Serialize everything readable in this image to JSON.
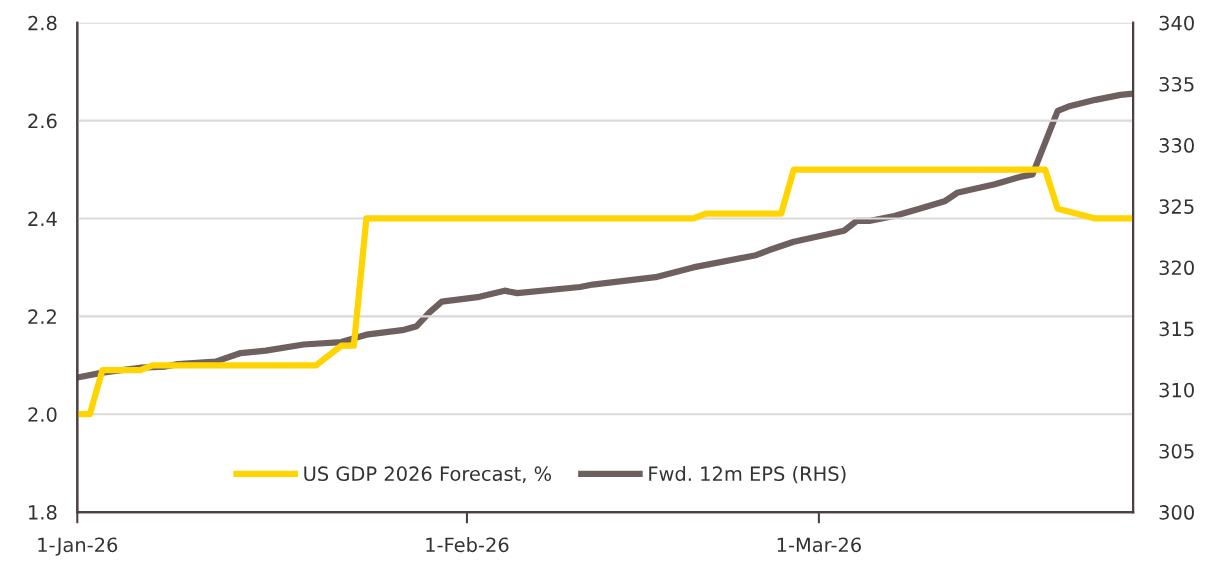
{
  "chart_data": {
    "type": "line",
    "series": [
      {
        "name": "US GDP 2026 Forecast, %",
        "color": "#ffd400",
        "x": [
          "2026-01-01",
          "2026-01-02",
          "2026-01-03",
          "2026-01-06",
          "2026-01-07",
          "2026-01-20",
          "2026-01-22",
          "2026-01-23",
          "2026-01-24",
          "2026-02-19",
          "2026-02-20",
          "2026-02-26",
          "2026-02-27",
          "2026-03-19",
          "2026-03-20",
          "2026-03-23",
          "2026-03-26"
        ],
        "values": [
          2.0,
          2.0,
          2.09,
          2.09,
          2.1,
          2.1,
          2.14,
          2.14,
          2.4,
          2.4,
          2.41,
          2.41,
          2.5,
          2.5,
          2.42,
          2.4,
          2.4
        ]
      },
      {
        "name": "Fwd. 12m EPS (RHS)",
        "color": "#6e605e",
        "axis": "y2",
        "x": [
          "2026-01-01",
          "2026-01-03",
          "2026-01-06",
          "2026-01-08",
          "2026-01-09",
          "2026-01-12",
          "2026-01-14",
          "2026-01-16",
          "2026-01-19",
          "2026-01-22",
          "2026-01-24",
          "2026-01-27",
          "2026-01-28",
          "2026-01-29",
          "2026-01-30",
          "2026-02-02",
          "2026-02-04",
          "2026-02-05",
          "2026-02-10",
          "2026-02-11",
          "2026-02-16",
          "2026-02-19",
          "2026-02-24",
          "2026-02-25",
          "2026-02-27",
          "2026-03-03",
          "2026-03-04",
          "2026-03-05",
          "2026-03-07",
          "2026-03-09",
          "2026-03-11",
          "2026-03-12",
          "2026-03-15",
          "2026-03-17",
          "2026-03-18",
          "2026-03-20",
          "2026-03-21",
          "2026-03-23",
          "2026-03-25",
          "2026-03-26"
        ],
        "values": [
          311.0,
          311.4,
          311.8,
          311.9,
          312.1,
          312.3,
          313.0,
          313.2,
          313.7,
          313.9,
          314.5,
          314.9,
          315.2,
          316.3,
          317.2,
          317.6,
          318.1,
          317.9,
          318.4,
          318.6,
          319.2,
          320.0,
          321.0,
          321.4,
          322.1,
          323.0,
          323.8,
          323.8,
          324.2,
          324.8,
          325.4,
          326.1,
          326.8,
          327.4,
          327.6,
          332.8,
          333.2,
          333.7,
          334.1,
          334.2
        ]
      }
    ],
    "xlim": [
      "2026-01-01",
      "2026-03-26"
    ],
    "xticks": [
      {
        "value": "2026-01-01",
        "label": "1-Jan-26"
      },
      {
        "value": "2026-02-01",
        "label": "1-Feb-26"
      },
      {
        "value": "2026-03-01",
        "label": "1-Mar-26"
      }
    ],
    "ylim": [
      1.8,
      2.8
    ],
    "yticks": [
      {
        "value": 1.8,
        "label": "1.8"
      },
      {
        "value": 2.0,
        "label": "2.0"
      },
      {
        "value": 2.2,
        "label": "2.2"
      },
      {
        "value": 2.4,
        "label": "2.4"
      },
      {
        "value": 2.6,
        "label": "2.6"
      },
      {
        "value": 2.8,
        "label": "2.8"
      }
    ],
    "y2lim": [
      300,
      340
    ],
    "y2ticks": [
      300,
      305,
      310,
      315,
      320,
      325,
      330,
      335,
      340
    ],
    "grid": "y",
    "legend": "bottom",
    "marker": "none",
    "line_style": "solid"
  }
}
